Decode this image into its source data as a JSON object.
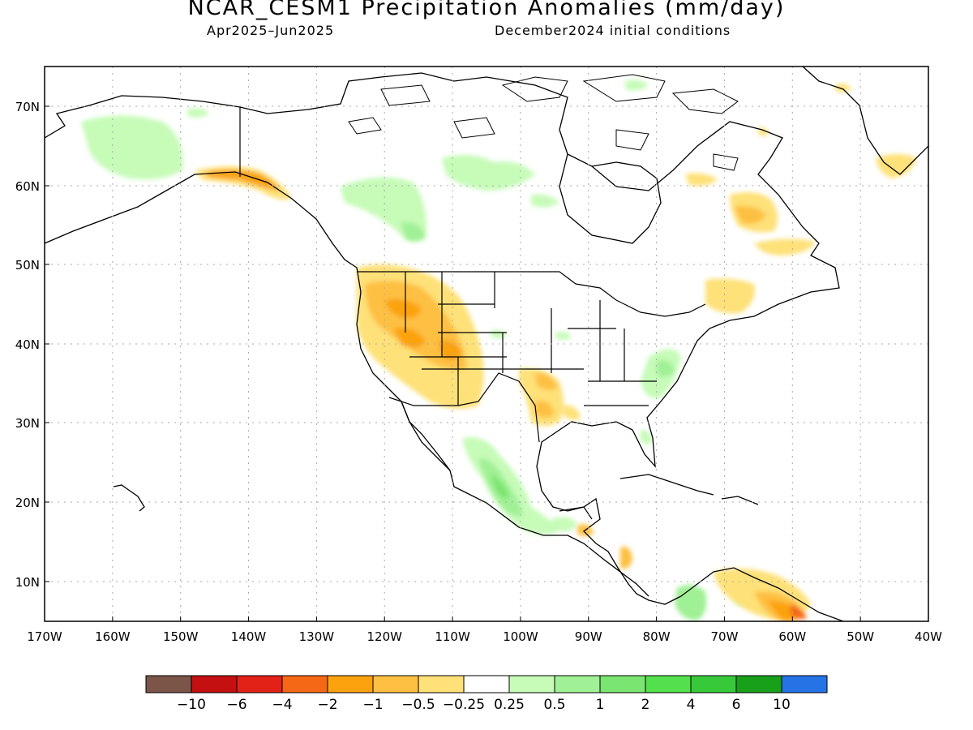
{
  "title": "NCAR_CESM1 Precipitation Anomalies (mm/day)",
  "period": "Apr2025–Jun2025",
  "initial_conditions": "December2024 initial conditions",
  "map": {
    "region": "North America",
    "lat_labels": [
      "70N",
      "60N",
      "50N",
      "40N",
      "30N",
      "20N",
      "10N"
    ],
    "lon_labels": [
      "170W",
      "160W",
      "150W",
      "140W",
      "130W",
      "120W",
      "110W",
      "100W",
      "90W",
      "80W",
      "70W",
      "60W",
      "50W",
      "40W"
    ],
    "grid": "dotted"
  },
  "colorbar": {
    "tick_labels": [
      "-10",
      "-6",
      "-4",
      "-2",
      "-1",
      "-0.5",
      "-0.25",
      "0.25",
      "0.5",
      "1",
      "2",
      "4",
      "6",
      "10"
    ],
    "colors": [
      "#7a5548",
      "#c41010",
      "#e32217",
      "#f56815",
      "#fca20e",
      "#fec042",
      "#fee178",
      "#ffffff",
      "#c6fbb8",
      "#a0f095",
      "#7ae570",
      "#53e04d",
      "#37c93a",
      "#18a01b",
      "#2673e6"
    ]
  }
}
